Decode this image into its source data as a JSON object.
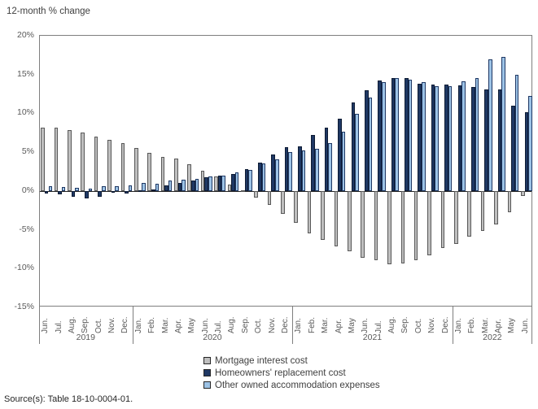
{
  "chart_data": {
    "type": "bar",
    "title": "12-month % change",
    "source": "Source(s): Table 18-10-0004-01.",
    "ylim": [
      -15,
      20
    ],
    "grid": "off",
    "legend_position": "bottom-center",
    "y_ticks": [
      {
        "label": "20%",
        "value": 20
      },
      {
        "label": "15%",
        "value": 15
      },
      {
        "label": "10%",
        "value": 10
      },
      {
        "label": "5%",
        "value": 5
      },
      {
        "label": "0%",
        "value": 0
      },
      {
        "label": "-5%",
        "value": -5
      },
      {
        "label": "-10%",
        "value": -10
      },
      {
        "label": "-15%",
        "value": -15
      }
    ],
    "months": [
      "Jun.",
      "Jul.",
      "Aug.",
      "Sep.",
      "Oct.",
      "Nov.",
      "Dec.",
      "Jan.",
      "Feb.",
      "Mar.",
      "Apr.",
      "May",
      "Jun.",
      "Jul.",
      "Aug.",
      "Sep.",
      "Oct.",
      "Nov.",
      "Dec.",
      "Jan.",
      "Feb.",
      "Mar.",
      "Apr.",
      "May",
      "Jun.",
      "Jul.",
      "Aug.",
      "Sep.",
      "Oct.",
      "Nov.",
      "Dec.",
      "Jan.",
      "Feb.",
      "Mar.",
      "Apr.",
      "May",
      "Jun."
    ],
    "years": [
      {
        "label": "2019",
        "span": 7
      },
      {
        "label": "2020",
        "span": 12
      },
      {
        "label": "2021",
        "span": 12
      },
      {
        "label": "2022",
        "span": 6
      }
    ],
    "series": [
      {
        "name": "Mortgage interest cost",
        "fill": "#bfbfbf",
        "border": "#595959",
        "values": [
          8.2,
          8.2,
          7.8,
          7.5,
          7.0,
          6.6,
          6.2,
          5.5,
          4.9,
          4.4,
          4.2,
          3.4,
          2.6,
          1.9,
          0.8,
          0.0,
          -0.9,
          -1.8,
          -3.0,
          -4.1,
          -5.5,
          -6.3,
          -7.1,
          -7.8,
          -8.6,
          -8.9,
          -9.4,
          -9.3,
          -8.9,
          -8.3,
          -7.4,
          -6.8,
          -5.9,
          -5.2,
          -4.3,
          -2.7,
          -0.6
        ]
      },
      {
        "name": "Homeowners' replacement cost",
        "fill": "#1f3864",
        "border": "#0d1b33",
        "values": [
          -0.3,
          -0.4,
          -0.7,
          -1.0,
          -0.8,
          -0.1,
          -0.3,
          0.1,
          0.2,
          0.7,
          1.0,
          1.3,
          1.8,
          2.0,
          2.2,
          2.8,
          3.7,
          4.7,
          5.6,
          5.8,
          7.2,
          8.2,
          9.3,
          11.4,
          13.0,
          14.2,
          14.5,
          14.6,
          13.8,
          13.7,
          13.7,
          13.6,
          13.4,
          13.1,
          13.1,
          11.0,
          10.1
        ]
      },
      {
        "name": "Other owned accommodation expenses",
        "fill": "#9dc3e6",
        "border": "#1f3864",
        "values": [
          0.6,
          0.5,
          0.4,
          0.3,
          0.6,
          0.6,
          0.7,
          1.0,
          0.9,
          1.3,
          1.5,
          1.6,
          1.9,
          2.0,
          2.4,
          2.7,
          3.6,
          4.1,
          5.0,
          5.2,
          5.4,
          6.2,
          7.6,
          9.9,
          12.0,
          14.0,
          14.6,
          14.3,
          14.0,
          13.5,
          13.5,
          14.1,
          14.6,
          17.0,
          17.3,
          15.0,
          12.2
        ]
      }
    ]
  }
}
